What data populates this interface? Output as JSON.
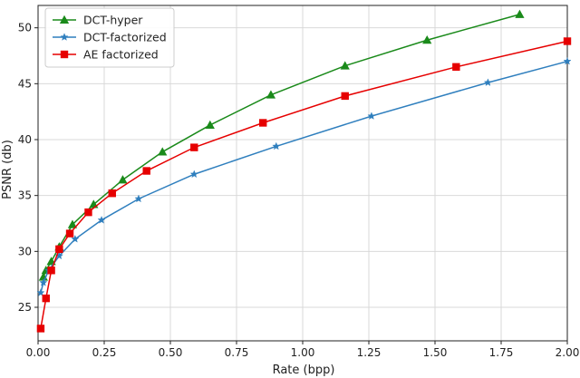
{
  "chart_data": {
    "type": "line",
    "title": "",
    "xlabel": "Rate (bpp)",
    "ylabel": "PSNR (db)",
    "xlim": [
      0.0,
      2.0
    ],
    "ylim": [
      22.0,
      52.0
    ],
    "xticks": [
      0.0,
      0.25,
      0.5,
      0.75,
      1.0,
      1.25,
      1.5,
      1.75,
      2.0
    ],
    "xtick_labels": [
      "0.00",
      "0.25",
      "0.50",
      "0.75",
      "1.00",
      "1.25",
      "1.50",
      "1.75",
      "2.00"
    ],
    "yticks": [
      25,
      30,
      35,
      40,
      45,
      50
    ],
    "ytick_labels": [
      "25",
      "30",
      "35",
      "40",
      "45",
      "50"
    ],
    "grid": true,
    "legend_position": "top-left",
    "series": [
      {
        "name": "DCT-hyper",
        "color": "#1a8a1a",
        "marker": "triangle",
        "x": [
          0.02,
          0.03,
          0.05,
          0.08,
          0.13,
          0.21,
          0.32,
          0.47,
          0.65,
          0.88,
          1.16,
          1.47,
          1.82
        ],
        "y": [
          27.7,
          28.3,
          29.1,
          30.4,
          32.4,
          34.2,
          36.4,
          38.9,
          41.3,
          44.0,
          46.6,
          48.9,
          51.2
        ]
      },
      {
        "name": "DCT-factorized",
        "color": "#2f7fbe",
        "marker": "star",
        "x": [
          0.01,
          0.02,
          0.04,
          0.08,
          0.14,
          0.24,
          0.38,
          0.59,
          0.9,
          1.26,
          1.7,
          2.0
        ],
        "y": [
          26.3,
          27.2,
          28.3,
          29.6,
          31.1,
          32.8,
          34.7,
          36.9,
          39.4,
          42.1,
          45.1,
          47.0
        ]
      },
      {
        "name": "AE factorized",
        "color": "#e60000",
        "marker": "square",
        "x": [
          0.01,
          0.03,
          0.05,
          0.08,
          0.12,
          0.19,
          0.28,
          0.41,
          0.59,
          0.85,
          1.16,
          1.58,
          2.0
        ],
        "y": [
          23.1,
          25.8,
          28.3,
          30.2,
          31.6,
          33.5,
          35.2,
          37.2,
          39.3,
          41.5,
          43.9,
          46.5,
          48.8
        ]
      }
    ]
  }
}
